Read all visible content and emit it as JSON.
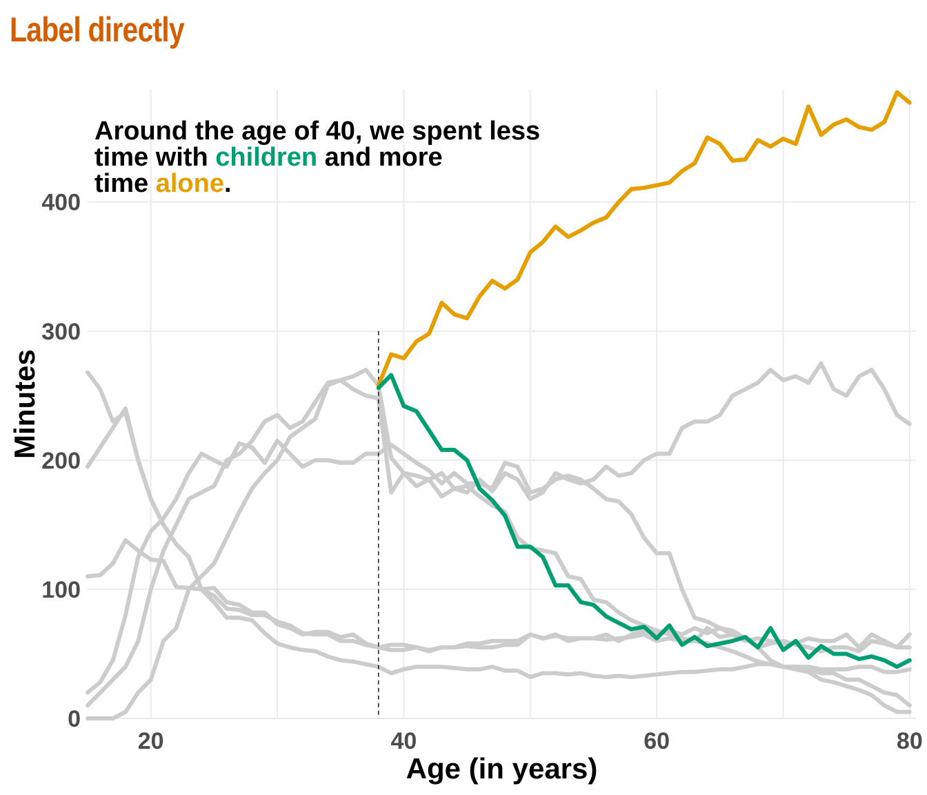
{
  "page": {
    "title": "Label directly"
  },
  "chart_data": {
    "type": "line",
    "xlabel": "Age (in years)",
    "ylabel": "Minutes",
    "xlim": [
      15,
      80.5
    ],
    "ylim": [
      0,
      487
    ],
    "x_ticks": [
      20,
      40,
      60,
      80
    ],
    "y_ticks": [
      0,
      100,
      200,
      300,
      400
    ],
    "grid": true,
    "vline": {
      "x": 38
    },
    "annotation": {
      "lines": [
        [
          {
            "text": "Around the age of 40, we spent less"
          }
        ],
        [
          {
            "text": "time with "
          },
          {
            "text": "children",
            "color": "#009e73"
          },
          {
            "text": " and more"
          }
        ],
        [
          {
            "text": "time "
          },
          {
            "text": "alone",
            "color": "#e69f00"
          },
          {
            "text": "."
          }
        ]
      ]
    },
    "colors": {
      "highlight_alone": "#e69f00",
      "highlight_children": "#009e73",
      "background": "#cccccc"
    },
    "series": [
      {
        "highlight": "alone",
        "x": [
          38,
          39,
          40,
          41,
          42,
          43,
          44,
          45,
          46,
          47,
          48,
          49,
          50,
          51,
          52,
          53,
          54,
          55,
          56,
          57,
          58,
          59,
          60,
          61,
          62,
          63,
          64,
          65,
          66,
          67,
          68,
          69,
          70,
          71,
          72,
          73,
          74,
          75,
          76,
          77,
          78,
          79,
          80
        ],
        "values": [
          258,
          282,
          279,
          292,
          298,
          322,
          313,
          310,
          327,
          339,
          333,
          340,
          361,
          369,
          381,
          373,
          378,
          384,
          388,
          400,
          410,
          411,
          413,
          415,
          424,
          430,
          450,
          445,
          432,
          433,
          448,
          443,
          449,
          445,
          474,
          452,
          460,
          464,
          458,
          456,
          462,
          485,
          477
        ]
      },
      {
        "highlight": "children",
        "x": [
          38,
          39,
          40,
          41,
          42,
          43,
          44,
          45,
          46,
          47,
          48,
          49,
          50,
          51,
          52,
          53,
          54,
          55,
          56,
          57,
          58,
          59,
          60,
          61,
          62,
          63,
          64,
          65,
          66,
          67,
          68,
          69,
          70,
          71,
          72,
          73,
          74,
          75,
          76,
          77,
          78,
          79,
          80
        ],
        "values": [
          256,
          266,
          242,
          238,
          223,
          208,
          208,
          200,
          178,
          169,
          157,
          133,
          133,
          125,
          103,
          103,
          90,
          88,
          79,
          74,
          69,
          71,
          62,
          72,
          57,
          63,
          56,
          58,
          60,
          63,
          55,
          70,
          53,
          60,
          47,
          56,
          50,
          50,
          46,
          48,
          45,
          40,
          45
        ]
      },
      {
        "x": [
          15,
          16,
          17,
          18,
          19,
          20,
          21,
          22,
          23,
          24,
          25,
          26,
          27,
          28,
          29,
          30,
          31,
          32,
          33,
          34,
          35,
          36,
          37,
          38,
          39,
          40,
          41,
          42,
          43,
          44,
          45,
          46,
          47,
          48,
          49,
          50,
          51,
          52,
          53,
          54,
          55,
          56,
          57,
          58,
          59,
          60,
          61,
          62,
          63,
          64,
          65,
          66,
          67,
          68,
          69,
          70,
          71,
          72,
          73,
          74,
          75,
          76,
          77,
          78,
          79,
          80
        ],
        "values": [
          195,
          210,
          225,
          240,
          200,
          170,
          150,
          135,
          125,
          100,
          95,
          85,
          84,
          80,
          80,
          75,
          72,
          66,
          65,
          65,
          60,
          60,
          57,
          55,
          53,
          53,
          55,
          52,
          55,
          55,
          58,
          58,
          60,
          60,
          60,
          65,
          62,
          65,
          60,
          62,
          62,
          65,
          60,
          65,
          68,
          65,
          68,
          65,
          70,
          66,
          70,
          65,
          60,
          62,
          60,
          58,
          58,
          62,
          60,
          60,
          65,
          55,
          65,
          60,
          55,
          65
        ]
      },
      {
        "x": [
          15,
          16,
          17,
          18,
          19,
          20,
          21,
          22,
          23,
          24,
          25,
          26,
          27,
          28,
          29,
          30,
          31,
          32,
          33,
          34,
          35,
          36,
          37,
          38,
          39,
          40,
          41,
          42,
          43,
          44,
          45,
          46,
          47,
          48,
          49,
          50,
          51,
          52,
          53,
          54,
          55,
          56,
          57,
          58,
          59,
          60,
          61,
          62,
          63,
          64,
          65,
          66,
          67,
          68,
          69,
          70,
          71,
          72,
          73,
          74,
          75,
          76,
          77,
          78,
          79,
          80
        ],
        "values": [
          268,
          255,
          230,
          237,
          200,
          170,
          150,
          135,
          125,
          100,
          90,
          78,
          78,
          76,
          66,
          58,
          55,
          53,
          52,
          48,
          45,
          44,
          42,
          40,
          35,
          38,
          40,
          40,
          40,
          39,
          38,
          38,
          40,
          37,
          37,
          32,
          35,
          35,
          34,
          35,
          33,
          32,
          33,
          32,
          33,
          34,
          35,
          36,
          36,
          37,
          38,
          38,
          40,
          42,
          42,
          40,
          40,
          40,
          38,
          38,
          38,
          40,
          40,
          36,
          36,
          38
        ]
      },
      {
        "x": [
          15,
          16,
          17,
          18,
          19,
          20,
          21,
          22,
          23,
          24,
          25,
          26,
          27,
          28,
          29,
          30,
          31,
          32,
          33,
          34,
          35,
          36,
          37,
          38,
          39,
          40,
          41,
          42,
          43,
          44,
          45,
          46,
          47,
          48,
          49,
          50,
          51,
          52,
          53,
          54,
          55,
          56,
          57,
          58,
          59,
          60,
          61,
          62,
          63,
          64,
          65,
          66,
          67,
          68,
          69,
          70,
          71,
          72,
          73,
          74,
          75,
          76,
          77,
          78,
          79,
          80
        ],
        "values": [
          110,
          111,
          120,
          138,
          130,
          123,
          122,
          102,
          101,
          100,
          101,
          90,
          88,
          82,
          82,
          73,
          70,
          65,
          67,
          67,
          63,
          65,
          58,
          55,
          57,
          57,
          55,
          53,
          55,
          55,
          56,
          55,
          55,
          57,
          57,
          65,
          62,
          64,
          62,
          62,
          62,
          61,
          62,
          63,
          65,
          60,
          62,
          60,
          60,
          70,
          63,
          65,
          62,
          55,
          58,
          60,
          57,
          55,
          52,
          55,
          55,
          52,
          60,
          58,
          55,
          55
        ]
      },
      {
        "x": [
          15,
          16,
          17,
          18,
          19,
          20,
          21,
          22,
          23,
          24,
          25,
          26,
          27,
          28,
          29,
          30,
          31,
          32,
          33,
          34,
          35,
          36,
          37,
          38,
          39,
          40,
          41,
          42,
          43,
          44,
          45,
          46,
          47,
          48,
          49,
          50,
          51,
          52,
          53,
          54,
          55,
          56,
          57,
          58,
          59,
          60,
          61,
          62,
          63,
          64,
          65,
          66,
          67,
          68,
          69,
          70,
          71,
          72,
          73,
          74,
          75,
          76,
          77,
          78,
          79,
          80
        ],
        "values": [
          20,
          28,
          45,
          80,
          125,
          145,
          155,
          170,
          190,
          205,
          200,
          195,
          213,
          210,
          198,
          215,
          205,
          195,
          200,
          200,
          198,
          198,
          205,
          205,
          212,
          205,
          198,
          192,
          182,
          190,
          182,
          182,
          178,
          198,
          195,
          175,
          178,
          185,
          188,
          185,
          178,
          170,
          168,
          158,
          140,
          128,
          128,
          100,
          78,
          75,
          70,
          68,
          62,
          55,
          45,
          40,
          40,
          38,
          35,
          35,
          30,
          30,
          25,
          20,
          18,
          10
        ]
      },
      {
        "x": [
          15,
          16,
          17,
          18,
          19,
          20,
          21,
          22,
          23,
          24,
          25,
          26,
          27,
          28,
          29,
          30,
          31,
          32,
          33,
          34,
          35,
          36,
          37,
          38,
          39,
          40,
          41,
          42,
          43,
          44,
          45,
          46,
          47,
          48,
          49,
          50,
          51,
          52,
          53,
          54,
          55,
          56,
          57,
          58,
          59,
          60,
          61,
          62,
          63,
          64,
          65,
          66,
          67,
          68,
          69,
          70,
          71,
          72,
          73,
          74,
          75,
          76,
          77,
          78,
          79,
          80
        ],
        "values": [
          10,
          20,
          30,
          40,
          60,
          100,
          130,
          150,
          170,
          175,
          180,
          200,
          205,
          215,
          230,
          235,
          225,
          230,
          245,
          260,
          262,
          255,
          250,
          248,
          175,
          190,
          180,
          185,
          172,
          178,
          175,
          185,
          176,
          190,
          185,
          170,
          175,
          190,
          185,
          182,
          185,
          195,
          188,
          190,
          200,
          205,
          205,
          225,
          230,
          230,
          235,
          250,
          255,
          260,
          270,
          262,
          265,
          260,
          275,
          255,
          250,
          265,
          270,
          255,
          235,
          228
        ]
      },
      {
        "x": [
          15,
          16,
          17,
          18,
          19,
          20,
          21,
          22,
          23,
          24,
          25,
          26,
          27,
          28,
          29,
          30,
          31,
          32,
          33,
          34,
          35,
          36,
          37,
          38,
          39,
          40,
          41,
          42,
          43,
          44,
          45,
          46,
          47,
          48,
          49,
          50,
          51,
          52,
          53,
          54,
          55,
          56,
          57,
          58,
          59,
          60,
          61,
          62,
          63,
          64,
          65,
          66,
          67,
          68,
          69,
          70,
          71,
          72,
          73,
          74,
          75,
          76,
          77,
          78,
          79,
          80
        ],
        "values": [
          0,
          0,
          0,
          5,
          20,
          30,
          60,
          70,
          100,
          110,
          120,
          140,
          160,
          178,
          190,
          200,
          218,
          225,
          232,
          258,
          262,
          265,
          270,
          258,
          202,
          190,
          188,
          185,
          190,
          178,
          180,
          172,
          165,
          160,
          140,
          132,
          130,
          128,
          110,
          108,
          92,
          90,
          82,
          76,
          72,
          68,
          65,
          62,
          60,
          58,
          55,
          52,
          48,
          44,
          42,
          40,
          38,
          36,
          30,
          28,
          25,
          22,
          18,
          10,
          5,
          5
        ]
      }
    ]
  }
}
